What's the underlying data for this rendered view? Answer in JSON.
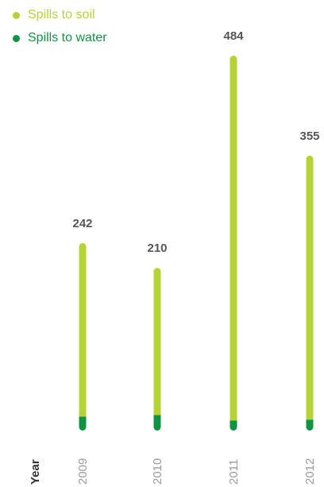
{
  "chart_data": {
    "type": "bar",
    "xlabel": "Year",
    "categories": [
      "2009",
      "2010",
      "2011",
      "2012"
    ],
    "series": [
      {
        "name": "Spills to soil",
        "values": [
          224,
          190,
          471,
          341
        ],
        "color": "#b5d334"
      },
      {
        "name": "Spills to water",
        "values": [
          18,
          20,
          13,
          14
        ],
        "color": "#119346"
      }
    ],
    "totals": [
      "242",
      "210",
      "484",
      "355"
    ],
    "total_values": [
      242,
      210,
      484,
      355
    ],
    "ylim": [
      0,
      484
    ],
    "grid": false,
    "legend_position": "top-left"
  }
}
